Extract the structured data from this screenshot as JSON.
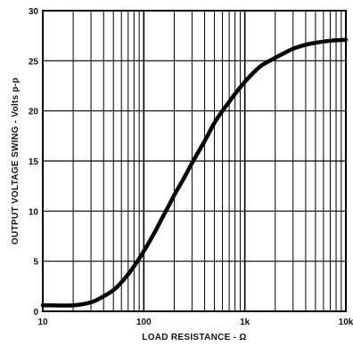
{
  "chart_data": {
    "type": "line",
    "xlabel": "LOAD RESISTANCE - Ω",
    "ylabel": "OUTPUT VOLTAGE SWING - Volts p-p",
    "x_scale": "log",
    "xlim": [
      10,
      10000
    ],
    "ylim": [
      0,
      30
    ],
    "grid": true,
    "x_ticks": [
      10,
      100,
      1000,
      10000
    ],
    "x_tick_labels": [
      "10",
      "100",
      "1k",
      "10k"
    ],
    "y_ticks": [
      0,
      5,
      10,
      15,
      20,
      25,
      30
    ],
    "y_tick_labels": [
      "0",
      "5",
      "10",
      "15",
      "20",
      "25",
      "30"
    ],
    "series": [
      {
        "color": "#000000",
        "x": [
          10,
          20,
          30,
          40,
          50,
          60,
          70,
          80,
          100,
          130,
          150,
          180,
          200,
          250,
          300,
          400,
          500,
          600,
          700,
          800,
          1000,
          1300,
          1500,
          2000,
          2500,
          3000,
          4000,
          5000,
          7000,
          10000
        ],
        "y": [
          0.6,
          0.6,
          0.9,
          1.5,
          2.1,
          2.9,
          3.7,
          4.5,
          6.0,
          8.0,
          9.2,
          10.7,
          11.6,
          13.3,
          14.8,
          17.0,
          18.8,
          20.0,
          20.9,
          21.7,
          22.9,
          24.1,
          24.6,
          25.3,
          25.8,
          26.2,
          26.6,
          26.8,
          27.0,
          27.1
        ]
      }
    ]
  }
}
